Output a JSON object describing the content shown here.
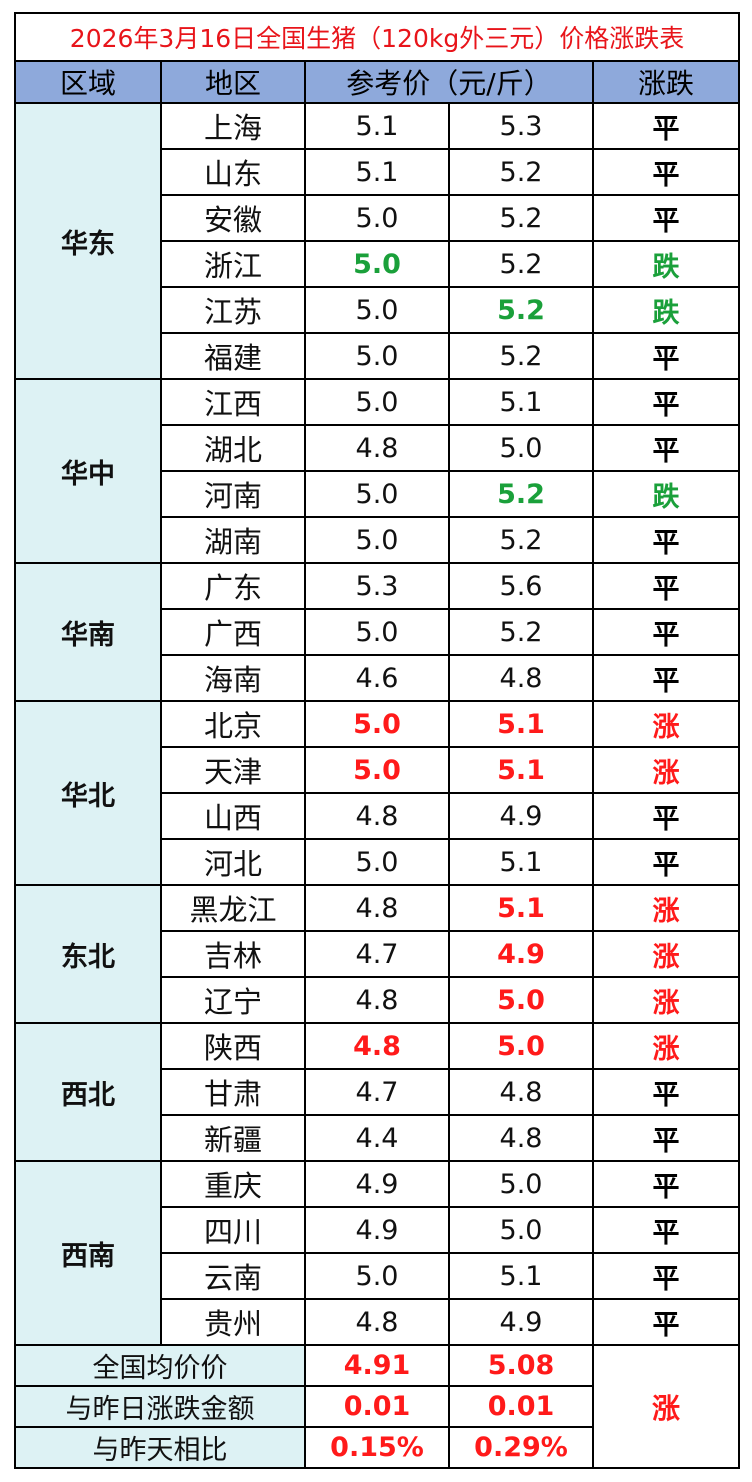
{
  "title": "2026年3月16日全国生猪（120kg外三元）价格涨跌表",
  "header": {
    "region": "区域",
    "province": "地区",
    "price": "参考价（元/斤）",
    "change": "涨跌"
  },
  "regions": [
    {
      "name": "华东",
      "rows": [
        {
          "province": "上海",
          "low": "5.1",
          "high": "5.3",
          "change": "平",
          "low_state": "flat",
          "high_state": "flat",
          "change_state": "flat"
        },
        {
          "province": "山东",
          "low": "5.1",
          "high": "5.2",
          "change": "平",
          "low_state": "flat",
          "high_state": "flat",
          "change_state": "flat"
        },
        {
          "province": "安徽",
          "low": "5.0",
          "high": "5.2",
          "change": "平",
          "low_state": "flat",
          "high_state": "flat",
          "change_state": "flat"
        },
        {
          "province": "浙江",
          "low": "5.0",
          "high": "5.2",
          "change": "跌",
          "low_state": "down",
          "high_state": "flat",
          "change_state": "down"
        },
        {
          "province": "江苏",
          "low": "5.0",
          "high": "5.2",
          "change": "跌",
          "low_state": "flat",
          "high_state": "down",
          "change_state": "down"
        },
        {
          "province": "福建",
          "low": "5.0",
          "high": "5.2",
          "change": "平",
          "low_state": "flat",
          "high_state": "flat",
          "change_state": "flat"
        }
      ]
    },
    {
      "name": "华中",
      "rows": [
        {
          "province": "江西",
          "low": "5.0",
          "high": "5.1",
          "change": "平",
          "low_state": "flat",
          "high_state": "flat",
          "change_state": "flat"
        },
        {
          "province": "湖北",
          "low": "4.8",
          "high": "5.0",
          "change": "平",
          "low_state": "flat",
          "high_state": "flat",
          "change_state": "flat"
        },
        {
          "province": "河南",
          "low": "5.0",
          "high": "5.2",
          "change": "跌",
          "low_state": "flat",
          "high_state": "down",
          "change_state": "down"
        },
        {
          "province": "湖南",
          "low": "5.0",
          "high": "5.2",
          "change": "平",
          "low_state": "flat",
          "high_state": "flat",
          "change_state": "flat"
        }
      ]
    },
    {
      "name": "华南",
      "rows": [
        {
          "province": "广东",
          "low": "5.3",
          "high": "5.6",
          "change": "平",
          "low_state": "flat",
          "high_state": "flat",
          "change_state": "flat"
        },
        {
          "province": "广西",
          "low": "5.0",
          "high": "5.2",
          "change": "平",
          "low_state": "flat",
          "high_state": "flat",
          "change_state": "flat"
        },
        {
          "province": "海南",
          "low": "4.6",
          "high": "4.8",
          "change": "平",
          "low_state": "flat",
          "high_state": "flat",
          "change_state": "flat"
        }
      ]
    },
    {
      "name": "华北",
      "rows": [
        {
          "province": "北京",
          "low": "5.0",
          "high": "5.1",
          "change": "涨",
          "low_state": "up",
          "high_state": "up",
          "change_state": "up"
        },
        {
          "province": "天津",
          "low": "5.0",
          "high": "5.1",
          "change": "涨",
          "low_state": "up",
          "high_state": "up",
          "change_state": "up"
        },
        {
          "province": "山西",
          "low": "4.8",
          "high": "4.9",
          "change": "平",
          "low_state": "flat",
          "high_state": "flat",
          "change_state": "flat"
        },
        {
          "province": "河北",
          "low": "5.0",
          "high": "5.1",
          "change": "平",
          "low_state": "flat",
          "high_state": "flat",
          "change_state": "flat"
        }
      ]
    },
    {
      "name": "东北",
      "rows": [
        {
          "province": "黑龙江",
          "low": "4.8",
          "high": "5.1",
          "change": "涨",
          "low_state": "flat",
          "high_state": "up",
          "change_state": "up"
        },
        {
          "province": "吉林",
          "low": "4.7",
          "high": "4.9",
          "change": "涨",
          "low_state": "flat",
          "high_state": "up",
          "change_state": "up"
        },
        {
          "province": "辽宁",
          "low": "4.8",
          "high": "5.0",
          "change": "涨",
          "low_state": "flat",
          "high_state": "up",
          "change_state": "up"
        }
      ]
    },
    {
      "name": "西北",
      "rows": [
        {
          "province": "陕西",
          "low": "4.8",
          "high": "5.0",
          "change": "涨",
          "low_state": "up",
          "high_state": "up",
          "change_state": "up"
        },
        {
          "province": "甘肃",
          "low": "4.7",
          "high": "4.8",
          "change": "平",
          "low_state": "flat",
          "high_state": "flat",
          "change_state": "flat"
        },
        {
          "province": "新疆",
          "low": "4.4",
          "high": "4.8",
          "change": "平",
          "low_state": "flat",
          "high_state": "flat",
          "change_state": "flat"
        }
      ]
    },
    {
      "name": "西南",
      "rows": [
        {
          "province": "重庆",
          "low": "4.9",
          "high": "5.0",
          "change": "平",
          "low_state": "flat",
          "high_state": "flat",
          "change_state": "flat"
        },
        {
          "province": "四川",
          "low": "4.9",
          "high": "5.0",
          "change": "平",
          "low_state": "flat",
          "high_state": "flat",
          "change_state": "flat"
        },
        {
          "province": "云南",
          "low": "5.0",
          "high": "5.1",
          "change": "平",
          "low_state": "flat",
          "high_state": "flat",
          "change_state": "flat"
        },
        {
          "province": "贵州",
          "low": "4.8",
          "high": "4.9",
          "change": "平",
          "low_state": "flat",
          "high_state": "flat",
          "change_state": "flat"
        }
      ]
    }
  ],
  "summary": {
    "avg_label": "全国均价价",
    "avg_low": "4.91",
    "avg_high": "5.08",
    "diff_label": "与昨日涨跌金额",
    "diff_low": "0.01",
    "diff_high": "0.01",
    "pct_label": "与昨天相比",
    "pct_low": "0.15%",
    "pct_high": "0.29%",
    "change": "涨"
  },
  "colors": {
    "up": "#ff1a1a",
    "down": "#1aa03a",
    "header_bg": "#8ea9db",
    "region_bg": "#ddf2f4",
    "title": "#e8141a"
  }
}
